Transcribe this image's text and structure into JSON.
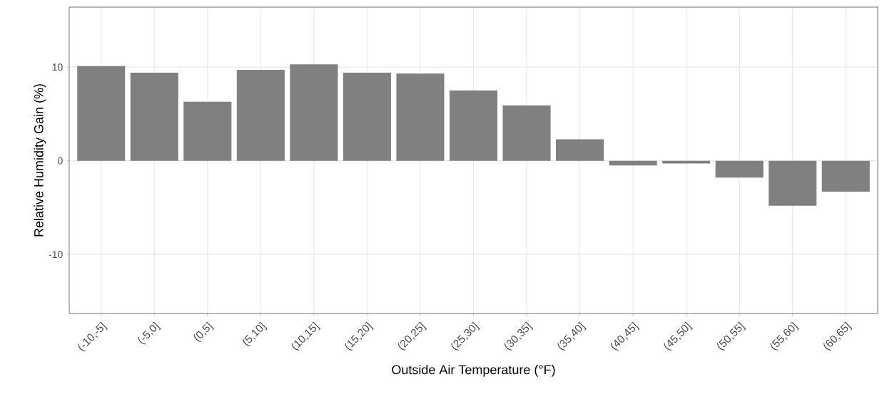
{
  "chart_data": {
    "type": "bar",
    "xlabel": "Outside Air Temperature (°F)",
    "ylabel": "Relative Humidity Gain (%)",
    "categories": [
      "(-10,-5]",
      "(-5,0]",
      "(0,5]",
      "(5,10]",
      "(10,15]",
      "(15,20]",
      "(20,25]",
      "(25,30]",
      "(30,35]",
      "(35,40]",
      "(40,45]",
      "(45,50]",
      "(50,55]",
      "(55,60]",
      "(60,65]"
    ],
    "values": [
      10.1,
      9.4,
      6.3,
      9.7,
      10.3,
      9.4,
      9.3,
      7.5,
      5.9,
      2.3,
      -0.5,
      -0.3,
      -1.8,
      -4.8,
      -3.3
    ],
    "color": "#808080",
    "ylim": [
      -16.3,
      16.4
    ],
    "yticks": [
      -10,
      0,
      10
    ],
    "grid": true
  }
}
